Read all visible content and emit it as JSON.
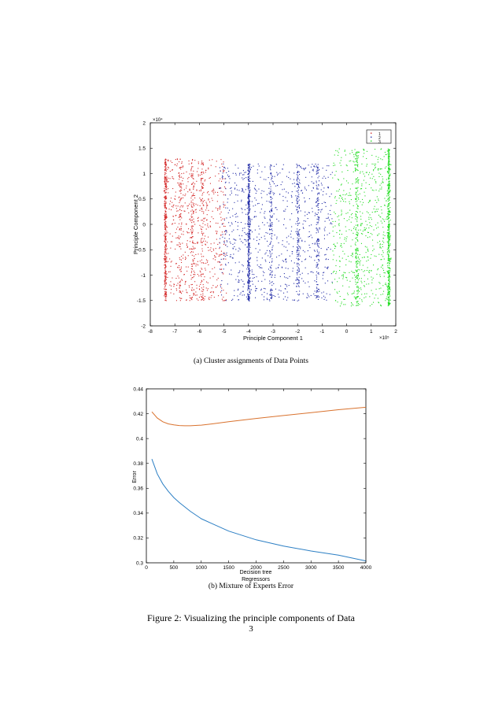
{
  "chart_data": [
    {
      "type": "scatter",
      "title": "",
      "xlabel": "Principle Component 1",
      "ylabel": "Principle Component 2",
      "x_multiplier": "×10⁵",
      "y_multiplier": "×10⁴",
      "xlim": [
        -8,
        2
      ],
      "ylim": [
        -2,
        2
      ],
      "x_ticks": [
        "-8",
        "-7",
        "-6",
        "-5",
        "-4",
        "-3",
        "-2",
        "-1",
        "0",
        "1",
        "2"
      ],
      "y_ticks": [
        "-2",
        "-1.5",
        "-1",
        "-0.5",
        "0",
        "0.5",
        "1",
        "1.5",
        "2"
      ],
      "legend": {
        "placement": "top-right",
        "entries": [
          "1",
          "2",
          "3"
        ]
      },
      "grid": false,
      "series": [
        {
          "name": "1",
          "color": "#d42a2a",
          "x_range": [
            -7.4,
            -4.9
          ],
          "y_range": [
            -1.5,
            1.3
          ],
          "dense_x": [
            -7.4,
            -6.8,
            -6.3,
            -5.9
          ]
        },
        {
          "name": "2",
          "color": "#2630a8",
          "x_range": [
            -5.2,
            -0.6
          ],
          "y_range": [
            -1.5,
            1.2
          ],
          "dense_x": [
            -4.0,
            -3.1,
            -2.0,
            -1.2
          ]
        },
        {
          "name": "3",
          "color": "#22dd22",
          "x_range": [
            -0.6,
            1.8
          ],
          "y_range": [
            -1.6,
            1.5
          ],
          "dense_x": [
            1.7,
            0.4
          ]
        }
      ]
    },
    {
      "type": "line",
      "title": "",
      "xlabel": "Decision tree Regressors",
      "ylabel": "Error",
      "xlim": [
        0,
        4000
      ],
      "ylim": [
        0.3,
        0.44
      ],
      "x_ticks": [
        "0",
        "500",
        "1000",
        "1500",
        "2000",
        "2500",
        "3000",
        "3500",
        "4000"
      ],
      "y_ticks": [
        "0.3",
        "0.32",
        "0.34",
        "0.36",
        "0.38",
        "0.4",
        "0.42",
        "0.44"
      ],
      "grid": false,
      "series": [
        {
          "color": "#d9722e",
          "x": [
            100,
            200,
            300,
            400,
            500,
            600,
            700,
            800,
            1000,
            1200,
            1500,
            2000,
            2500,
            3000,
            3500,
            4000
          ],
          "values": [
            0.4215,
            0.4165,
            0.4135,
            0.4118,
            0.411,
            0.4105,
            0.4103,
            0.4103,
            0.4108,
            0.4118,
            0.4135,
            0.4162,
            0.4185,
            0.4208,
            0.4232,
            0.4252
          ]
        },
        {
          "color": "#2c7fc4",
          "x": [
            100,
            150,
            200,
            300,
            400,
            500,
            600,
            800,
            1000,
            1200,
            1500,
            2000,
            2500,
            3000,
            3500,
            4000
          ],
          "values": [
            0.3835,
            0.3775,
            0.3715,
            0.3635,
            0.3575,
            0.3525,
            0.3485,
            0.3415,
            0.3355,
            0.3315,
            0.3255,
            0.3185,
            0.3135,
            0.3095,
            0.3062,
            0.3015
          ]
        }
      ]
    }
  ],
  "captions": {
    "a": "(a) Cluster assignments of Data Points",
    "b": "(b) Mixture of Experts Error",
    "figure": "Figure 2: Visualizing the principle components of Data",
    "page_number": "3"
  }
}
